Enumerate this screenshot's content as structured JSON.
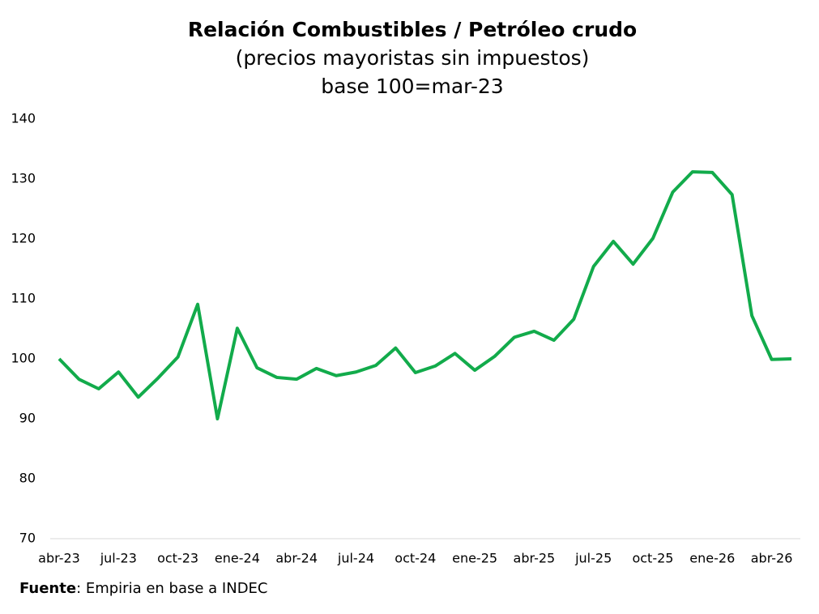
{
  "chart_data": {
    "type": "line",
    "title": "Relación Combustibles / Petróleo crudo",
    "subtitle": [
      "(precios mayoristas sin impuestos)",
      "base 100=mar-23"
    ],
    "categories": [
      "abr-23",
      null,
      null,
      "jul-23",
      null,
      null,
      "oct-23",
      null,
      null,
      "ene-24",
      null,
      null,
      "abr-24",
      null,
      null,
      "jul-24",
      null,
      null,
      "oct-24",
      null,
      null,
      "ene-25",
      null,
      null,
      "abr-25",
      null,
      null,
      "jul-25",
      null,
      null,
      "oct-25",
      null,
      null,
      "ene-26",
      null,
      null,
      "abr-26",
      null
    ],
    "series": [
      {
        "color": "#12ab4b",
        "values": [
          100,
          96.6,
          95.0,
          97.8,
          93.6,
          96.8,
          100.3,
          109.1,
          90.0,
          105.1,
          98.5,
          96.9,
          96.6,
          98.4,
          97.2,
          97.8,
          98.9,
          101.8,
          97.7,
          98.8,
          100.9,
          98.1,
          100.4,
          103.6,
          104.6,
          103.1,
          106.6,
          115.4,
          119.6,
          115.8,
          120.1,
          127.8,
          131.2,
          131.1,
          127.4,
          107.2,
          99.9,
          100.0
        ]
      }
    ],
    "ylim": [
      70,
      140
    ],
    "yticks": [
      70,
      80,
      90,
      100,
      110,
      120,
      130,
      140
    ],
    "grid": false,
    "source": {
      "label": "Fuente",
      "text": ": Empiria en base a INDEC"
    }
  }
}
